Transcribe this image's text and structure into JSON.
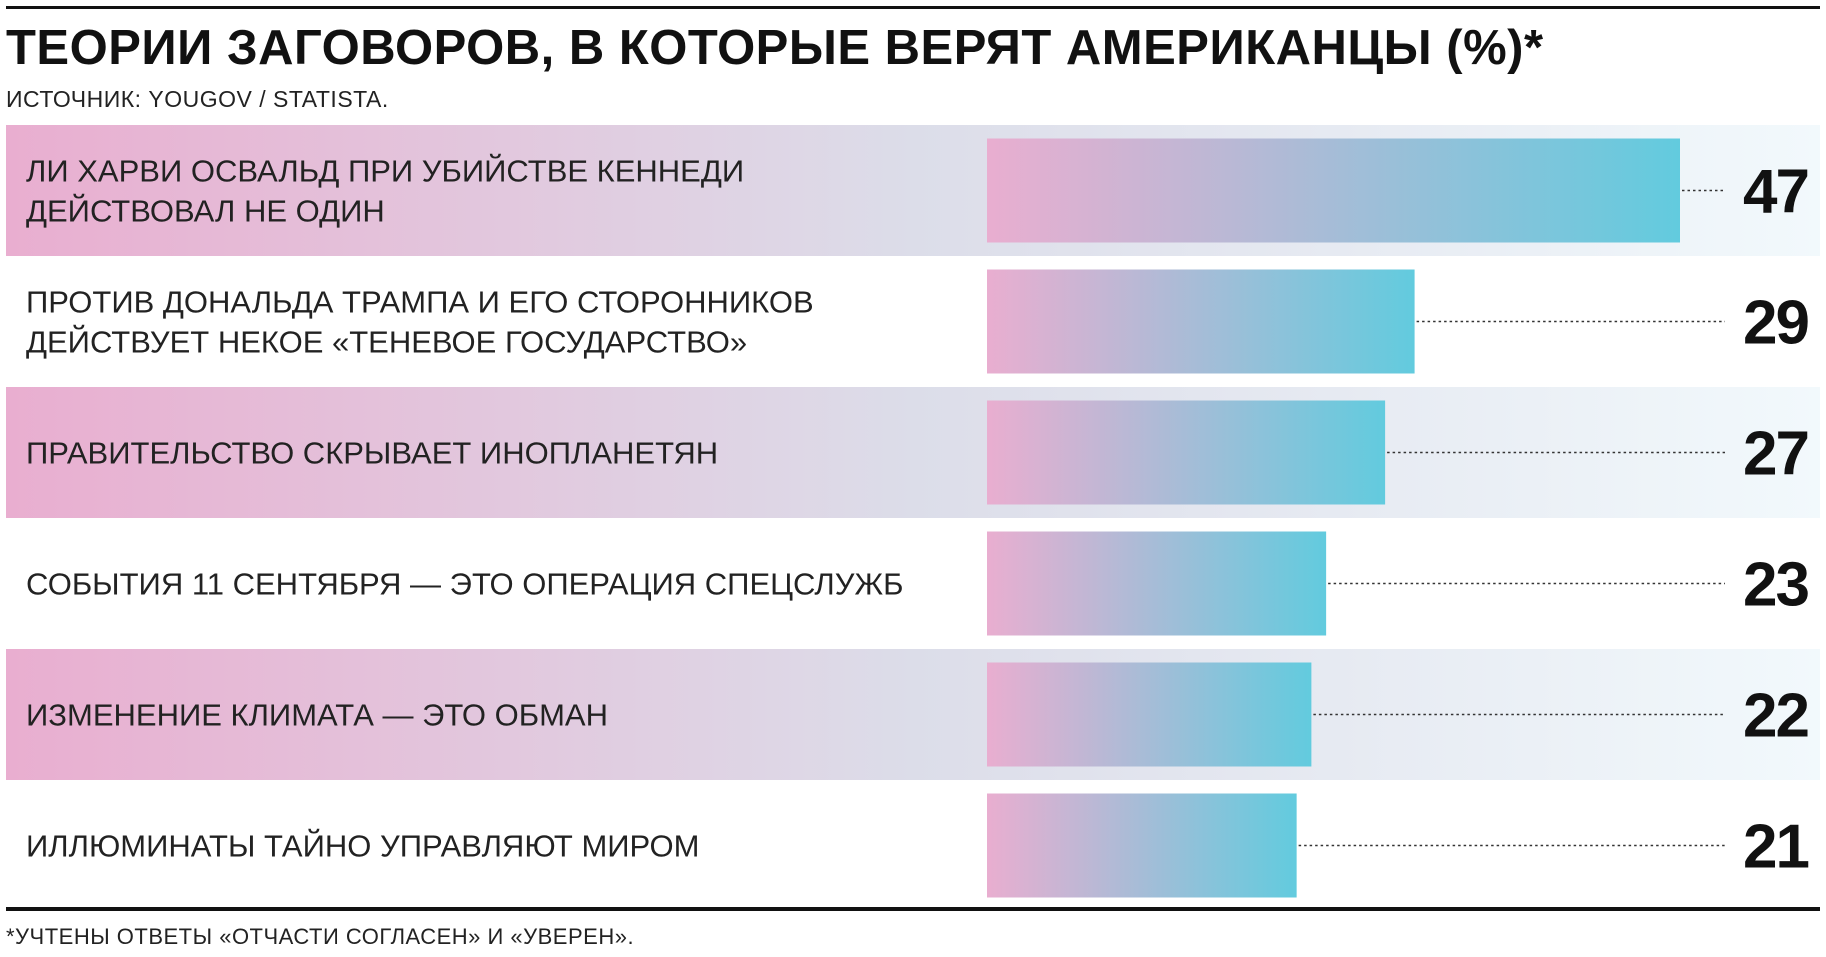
{
  "title": "ТЕОРИИ ЗАГОВОРОВ, В КОТОРЫЕ ВЕРЯТ АМЕРИКАНЦЫ (%)*",
  "source": "ИСТОЧНИК: YOUGOV / STATISTA.",
  "footnote": "*УЧТЕНЫ ОТВЕТЫ «ОТЧАСТИ СОГЛАСЕН» И «УВЕРЕН».",
  "colors": {
    "bar_start": "#e9aed0",
    "bar_end": "#62cbde",
    "band_start": "#e9aed0",
    "band_mid": "#dcdde9",
    "band_end": "#f2f9fc",
    "text": "#111111"
  },
  "chart_data": {
    "type": "bar",
    "orientation": "horizontal",
    "title": "ТЕОРИИ ЗАГОВОРОВ, В КОТОРЫЕ ВЕРЯТ АМЕРИКАНЦЫ (%)*",
    "xlim": [
      0,
      47
    ],
    "grid": false,
    "categories": [
      [
        "ЛИ ХАРВИ ОСВАЛЬД ПРИ УБИЙСТВЕ КЕННЕДИ",
        "ДЕЙСТВОВАЛ НЕ ОДИН"
      ],
      [
        "ПРОТИВ ДОНАЛЬДА ТРАМПА И ЕГО СТОРОННИКОВ",
        "ДЕЙСТВУЕТ НЕКОЕ «ТЕНЕВОЕ ГОСУДАРСТВО»"
      ],
      [
        "ПРАВИТЕЛЬСТВО СКРЫВАЕТ ИНОПЛАНЕТЯН"
      ],
      [
        "СОБЫТИЯ 11 СЕНТЯБРЯ — ЭТО ОПЕРАЦИЯ СПЕЦСЛУЖБ"
      ],
      [
        "ИЗМЕНЕНИЕ КЛИМАТА — ЭТО ОБМАН"
      ],
      [
        "ИЛЛЮМИНАТЫ ТАЙНО УПРАВЛЯЮТ МИРОМ"
      ]
    ],
    "values": [
      47,
      29,
      27,
      23,
      22,
      21
    ],
    "value_labels": [
      "47",
      "29",
      "27",
      "23",
      "22",
      "21"
    ],
    "shaded_rows": [
      true,
      false,
      true,
      false,
      true,
      false
    ]
  }
}
